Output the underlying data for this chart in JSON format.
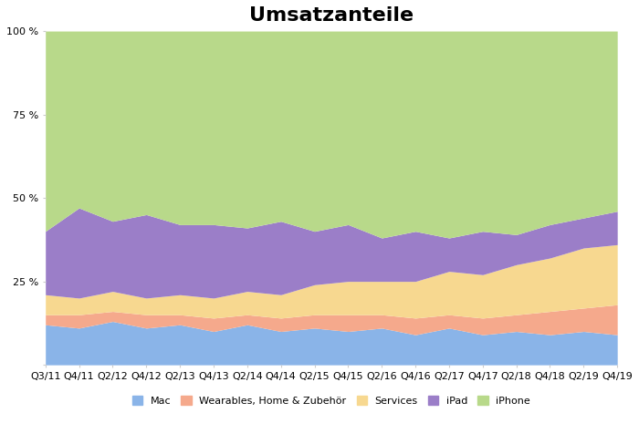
{
  "title": "Umsatzanteile",
  "x_labels": [
    "Q3/11",
    "Q4/11",
    "Q2/12",
    "Q4/12",
    "Q2/13",
    "Q4/13",
    "Q2/14",
    "Q4/14",
    "Q2/15",
    "Q4/15",
    "Q2/16",
    "Q4/16",
    "Q2/17",
    "Q4/17",
    "Q2/18",
    "Q4/18",
    "Q2/19",
    "Q4/19"
  ],
  "mac": [
    0.12,
    0.11,
    0.13,
    0.11,
    0.12,
    0.1,
    0.12,
    0.1,
    0.11,
    0.1,
    0.11,
    0.09,
    0.11,
    0.09,
    0.1,
    0.09,
    0.1,
    0.09
  ],
  "wearables": [
    0.03,
    0.04,
    0.03,
    0.04,
    0.03,
    0.04,
    0.03,
    0.04,
    0.04,
    0.05,
    0.04,
    0.05,
    0.04,
    0.05,
    0.05,
    0.07,
    0.07,
    0.09
  ],
  "services": [
    0.06,
    0.05,
    0.06,
    0.05,
    0.06,
    0.06,
    0.07,
    0.07,
    0.09,
    0.1,
    0.1,
    0.11,
    0.13,
    0.13,
    0.15,
    0.16,
    0.18,
    0.18
  ],
  "ipad": [
    0.19,
    0.27,
    0.21,
    0.25,
    0.21,
    0.22,
    0.19,
    0.22,
    0.16,
    0.17,
    0.13,
    0.15,
    0.1,
    0.13,
    0.09,
    0.1,
    0.09,
    0.1
  ],
  "iphone": [
    0.6,
    0.53,
    0.57,
    0.55,
    0.58,
    0.58,
    0.59,
    0.57,
    0.6,
    0.58,
    0.62,
    0.6,
    0.62,
    0.6,
    0.61,
    0.58,
    0.56,
    0.54
  ],
  "colors": {
    "mac": "#8ab4e8",
    "wearables": "#f5a98c",
    "services": "#f7d890",
    "ipad": "#9b7ec8",
    "iphone": "#b8d98a"
  },
  "legend_labels": {
    "mac": "Mac",
    "wearables": "Wearables, Home & Zubehör",
    "services": "Services",
    "ipad": "iPad",
    "iphone": "iPhone"
  },
  "yticks": [
    0.0,
    0.25,
    0.5,
    0.75,
    1.0
  ],
  "ytick_labels": [
    "",
    "25 %",
    "50 %",
    "75 %",
    "100 %"
  ],
  "background_color": "#ffffff",
  "title_fontsize": 16,
  "tick_fontsize": 8,
  "legend_fontsize": 8
}
